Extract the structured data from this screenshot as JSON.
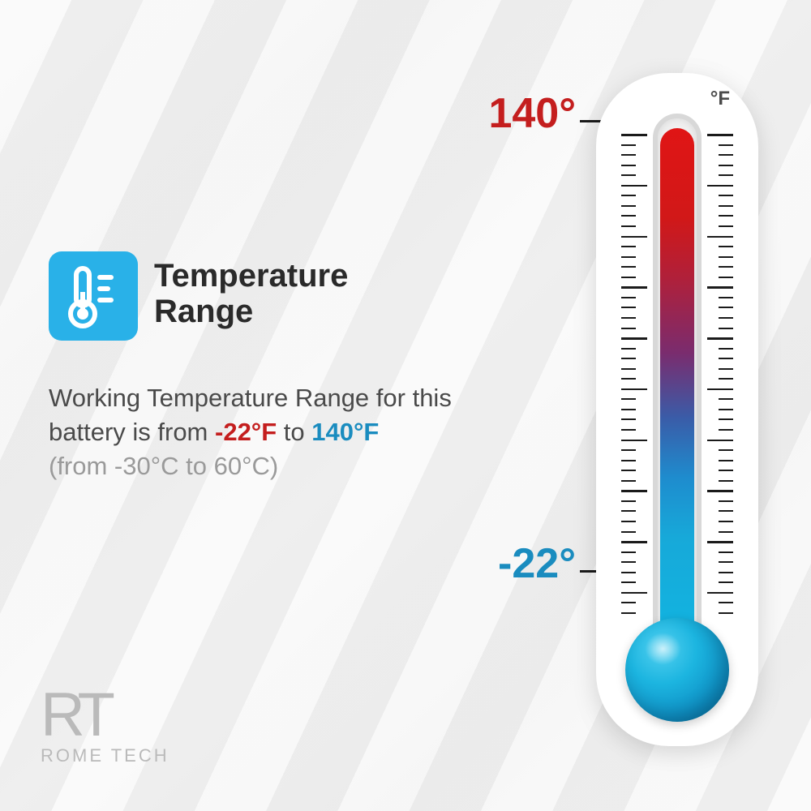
{
  "header": {
    "title_line1": "Temperature",
    "title_line2": "Range",
    "icon_name": "thermometer-icon"
  },
  "description": {
    "prefix": "Working Temperature Range for this battery is from ",
    "low_temp": "-22°F",
    "connector": " to ",
    "high_temp": "140°F",
    "celsius_note": "(from -30°C to 60°C)"
  },
  "thermometer": {
    "unit": "°F",
    "high_label": "140°",
    "low_label": "-22°",
    "high_color": "#c41e1e",
    "low_color": "#1a8cbf",
    "gradient_colors": [
      "#e01515",
      "#d11818",
      "#b0203a",
      "#7a2c6e",
      "#3a5ca8",
      "#1e8cce",
      "#17a9d9",
      "#12b3e0"
    ],
    "bulb_color": "#1cb5e0",
    "body_color": "#ffffff",
    "tick_count": 48,
    "major_tick_every": 5,
    "tube_height": 590
  },
  "logo": {
    "mark": "RT",
    "text": "ROME TECH"
  },
  "colors": {
    "icon_bg": "#29b1e8",
    "title_color": "#2a2a2a",
    "body_text": "#4a4a4a",
    "muted_text": "#9a9a9a",
    "logo_color": "#bababa"
  }
}
